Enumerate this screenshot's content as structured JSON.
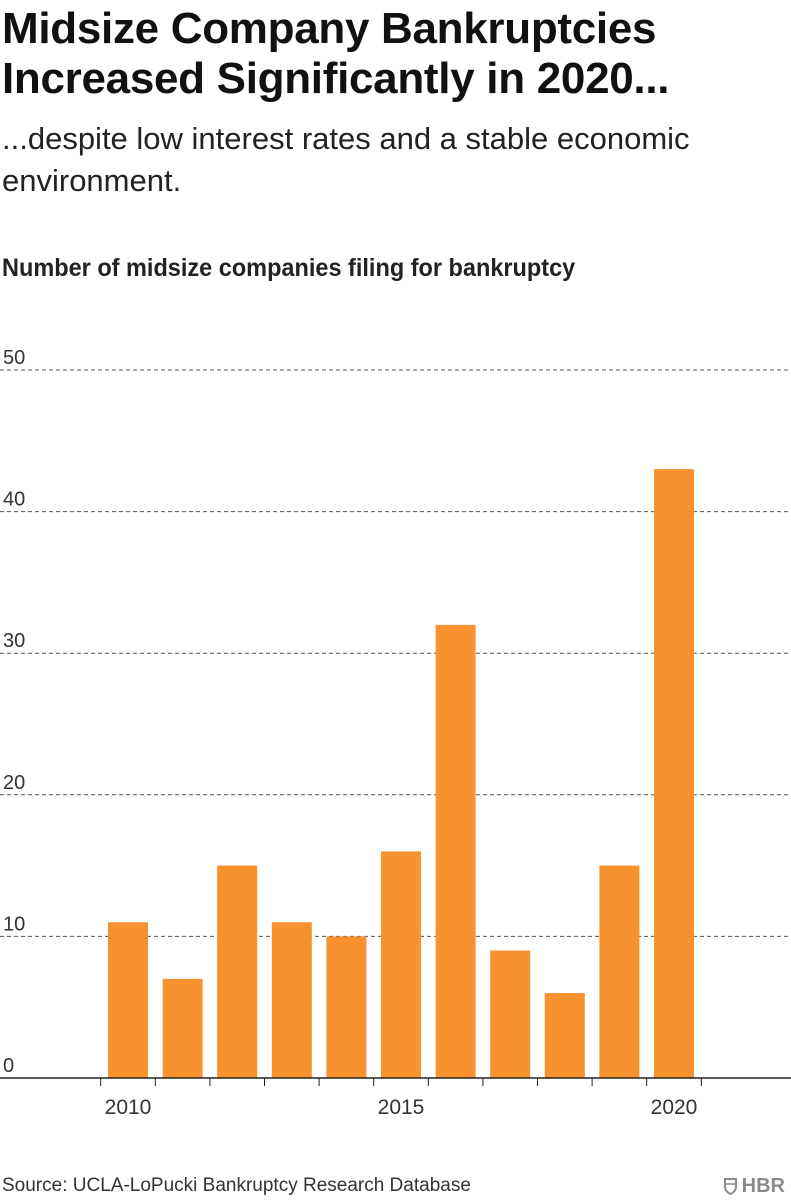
{
  "header": {
    "title": "Midsize Company Bankruptcies Increased Significantly in 2020...",
    "subtitle": "...despite low interest rates and a stable economic environment."
  },
  "chart_title": "Number of midsize companies filing for bankruptcy",
  "chart_data": {
    "type": "bar",
    "title": "Number of midsize companies filing for bankruptcy",
    "xlabel": "",
    "ylabel": "",
    "categories": [
      "2010",
      "2011",
      "2012",
      "2013",
      "2014",
      "2015",
      "2016",
      "2017",
      "2018",
      "2019",
      "2020"
    ],
    "values": [
      11,
      7,
      15,
      11,
      10,
      16,
      32,
      9,
      6,
      15,
      43
    ],
    "x_tick_labels": [
      "2010",
      "2015",
      "2020"
    ],
    "y_ticks": [
      0,
      10,
      20,
      30,
      40,
      50
    ],
    "ylim": [
      0,
      50
    ],
    "grid": true,
    "legend": "none",
    "bar_color": "#f7922e"
  },
  "footer": {
    "source": "Source: UCLA-LoPucki Bankruptcy Research Database",
    "logo_text": "HBR",
    "logo_icon": "hbr-shield-icon"
  }
}
